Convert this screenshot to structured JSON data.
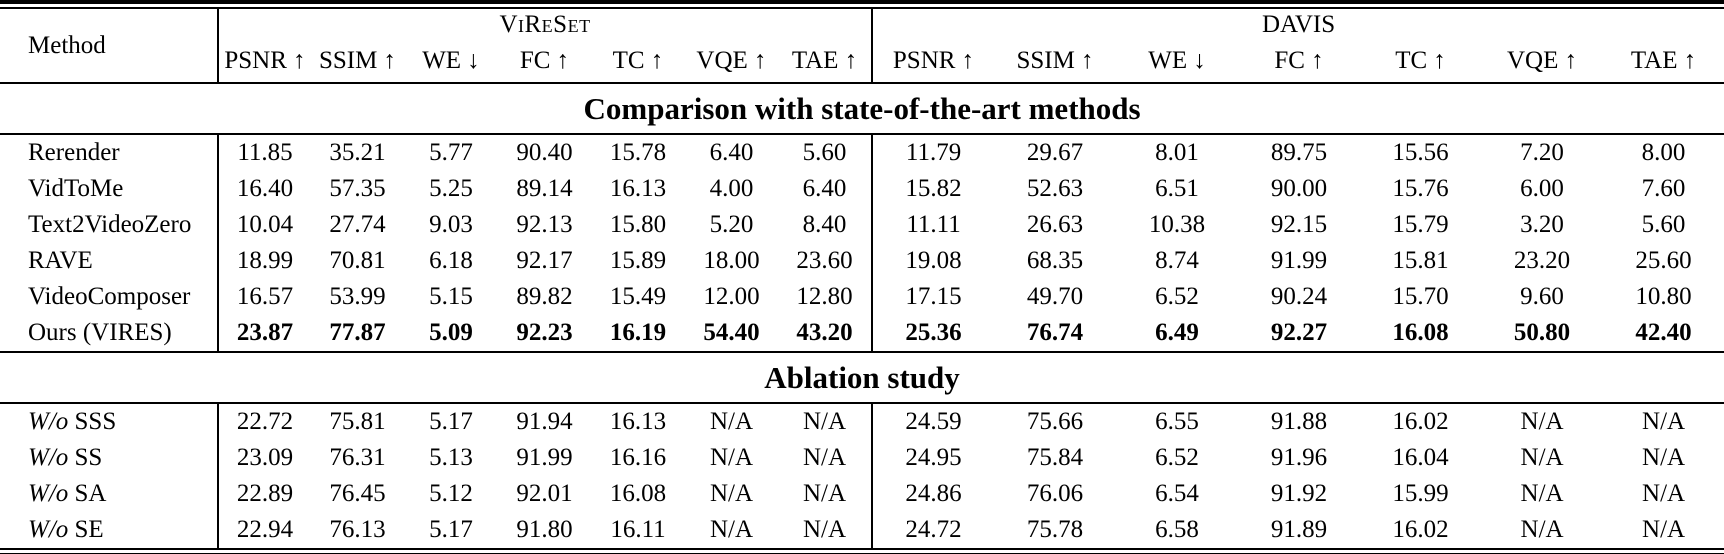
{
  "table": {
    "method_header": "Method",
    "group_headers": [
      "ViReSet",
      "DAVIS"
    ],
    "metrics": [
      "PSNR ↑",
      "SSIM ↑",
      "WE ↓",
      "FC ↑",
      "TC ↑",
      "VQE ↑",
      "TAE ↑"
    ],
    "sections": [
      {
        "title": "Comparison with state-of-the-art methods",
        "rows": [
          {
            "method": "Rerender",
            "vireset": [
              "11.85",
              "35.21",
              "5.77",
              "90.40",
              "15.78",
              "6.40",
              "5.60"
            ],
            "davis": [
              "11.79",
              "29.67",
              "8.01",
              "89.75",
              "15.56",
              "7.20",
              "8.00"
            ]
          },
          {
            "method": "VidToMe",
            "vireset": [
              "16.40",
              "57.35",
              "5.25",
              "89.14",
              "16.13",
              "4.00",
              "6.40"
            ],
            "davis": [
              "15.82",
              "52.63",
              "6.51",
              "90.00",
              "15.76",
              "6.00",
              "7.60"
            ]
          },
          {
            "method": "Text2VideoZero",
            "vireset": [
              "10.04",
              "27.74",
              "9.03",
              "92.13",
              "15.80",
              "5.20",
              "8.40"
            ],
            "davis": [
              "11.11",
              "26.63",
              "10.38",
              "92.15",
              "15.79",
              "3.20",
              "5.60"
            ]
          },
          {
            "method": "RAVE",
            "vireset": [
              "18.99",
              "70.81",
              "6.18",
              "92.17",
              "15.89",
              "18.00",
              "23.60"
            ],
            "davis": [
              "19.08",
              "68.35",
              "8.74",
              "91.99",
              "15.81",
              "23.20",
              "25.60"
            ]
          },
          {
            "method": "VideoComposer",
            "vireset": [
              "16.57",
              "53.99",
              "5.15",
              "89.82",
              "15.49",
              "12.00",
              "12.80"
            ],
            "davis": [
              "17.15",
              "49.70",
              "6.52",
              "90.24",
              "15.70",
              "9.60",
              "10.80"
            ]
          },
          {
            "method": "Ours (VIRES)",
            "bold_values": true,
            "vireset": [
              "23.87",
              "77.87",
              "5.09",
              "92.23",
              "16.19",
              "54.40",
              "43.20"
            ],
            "davis": [
              "25.36",
              "76.74",
              "6.49",
              "92.27",
              "16.08",
              "50.80",
              "42.40"
            ]
          }
        ]
      },
      {
        "title": "Ablation study",
        "rows": [
          {
            "method": "W/o SSS",
            "wo_italic": true,
            "vireset": [
              "22.72",
              "75.81",
              "5.17",
              "91.94",
              "16.13",
              "N/A",
              "N/A"
            ],
            "davis": [
              "24.59",
              "75.66",
              "6.55",
              "91.88",
              "16.02",
              "N/A",
              "N/A"
            ]
          },
          {
            "method": "W/o SS",
            "wo_italic": true,
            "vireset": [
              "23.09",
              "76.31",
              "5.13",
              "91.99",
              "16.16",
              "N/A",
              "N/A"
            ],
            "davis": [
              "24.95",
              "75.84",
              "6.52",
              "91.96",
              "16.04",
              "N/A",
              "N/A"
            ]
          },
          {
            "method": "W/o SA",
            "wo_italic": true,
            "vireset": [
              "22.89",
              "76.45",
              "5.12",
              "92.01",
              "16.08",
              "N/A",
              "N/A"
            ],
            "davis": [
              "24.86",
              "76.06",
              "6.54",
              "91.92",
              "15.99",
              "N/A",
              "N/A"
            ]
          },
          {
            "method": "W/o SE",
            "wo_italic": true,
            "vireset": [
              "22.94",
              "76.13",
              "5.17",
              "91.80",
              "16.11",
              "N/A",
              "N/A"
            ],
            "davis": [
              "24.72",
              "75.78",
              "6.58",
              "91.89",
              "16.02",
              "N/A",
              "N/A"
            ]
          }
        ]
      }
    ]
  },
  "colors": {
    "text": "#000000",
    "background": "#ffffff",
    "rule": "#000000"
  }
}
